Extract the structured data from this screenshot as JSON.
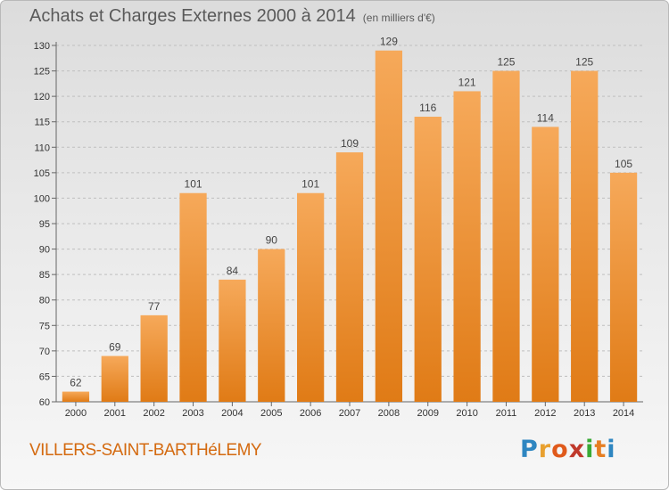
{
  "header": {
    "title": "Achats et Charges Externes 2000 à 2014",
    "subtitle": "(en milliers d'€)"
  },
  "footer": {
    "commune": "VILLERS-SAINT-BARTHéLEMY",
    "logo_letters": [
      "P",
      "r",
      "o",
      "x",
      "i",
      "t",
      "i"
    ],
    "logo_colors": [
      "#2e86c1",
      "#e8a02f",
      "#e05a1b",
      "#c0392b",
      "#3aaa35",
      "#e67e22",
      "#2e86c1"
    ]
  },
  "colors": {
    "bar_light": "#f6a95a",
    "bar_dark": "#e07b16",
    "axis": "#666666",
    "grid": "#bfbfbf"
  },
  "chart_data": {
    "type": "bar",
    "categories": [
      "2000",
      "2001",
      "2002",
      "2003",
      "2004",
      "2005",
      "2006",
      "2007",
      "2008",
      "2009",
      "2010",
      "2011",
      "2012",
      "2013",
      "2014"
    ],
    "values": [
      62,
      69,
      77,
      101,
      84,
      90,
      101,
      109,
      129,
      116,
      121,
      125,
      114,
      125,
      105
    ],
    "title": "Achats et Charges Externes 2000 à 2014",
    "ylim": [
      60,
      130
    ],
    "yticks": [
      60,
      65,
      70,
      75,
      80,
      85,
      90,
      95,
      100,
      105,
      110,
      115,
      120,
      125,
      130
    ],
    "grid": "horizontal-dashed"
  }
}
